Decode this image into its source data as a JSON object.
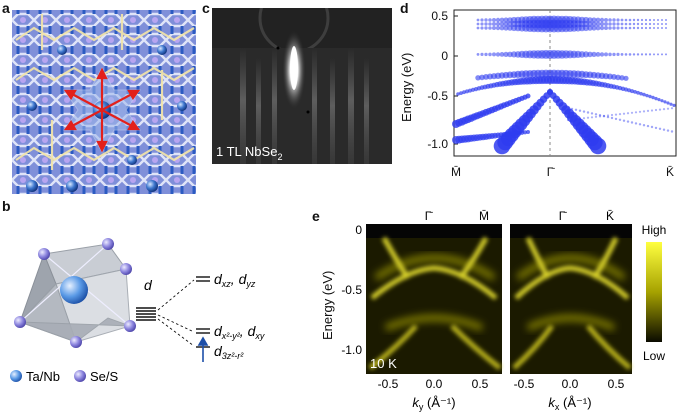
{
  "panel_labels": {
    "a": "a",
    "b": "b",
    "c": "c",
    "d": "d",
    "e": "e"
  },
  "panel_c": {
    "label": "1 TL NbSe",
    "label_sub": "2"
  },
  "panel_b": {
    "d_label": "d",
    "upper_orbital": "d",
    "upper_orbital_sub1": "xz",
    "upper_orbital_mid": ", d",
    "upper_orbital_sub2": "yz",
    "middle_orbital": "d",
    "middle_orbital_sub": "x²-y²",
    "middle_orbital_mid": ", d",
    "middle_orbital_sub2": "xy",
    "lower_orbital": "d",
    "lower_orbital_sub": "3z²-r²",
    "legend": [
      {
        "label": "Ta/Nb",
        "color": "#3a7fd5"
      },
      {
        "label": "Se/S",
        "color": "#8e86d8"
      }
    ]
  },
  "panel_d": {
    "ylabel": "Energy (eV)",
    "yticks": [
      "0.5",
      "0",
      "-0.5",
      "-1.0"
    ],
    "xticks": [
      "M̄",
      "Γ̄",
      "K̄"
    ],
    "marker_color": "#2f3cf0"
  },
  "panel_e": {
    "ylabel": "Energy (eV)",
    "yticks": [
      "0",
      "-0.5",
      "-1.0"
    ],
    "left": {
      "xticks": [
        "-0.5",
        "0.0",
        "0.5"
      ],
      "top_labels": [
        "Γ̄",
        "M̄"
      ],
      "xlabel": "k",
      "xlabel_sub": "y",
      "xlabel_unit": " (Å⁻¹)"
    },
    "right": {
      "xticks": [
        "-0.5",
        "0.0",
        "0.5"
      ],
      "top_labels": [
        "Γ̄",
        "K̄"
      ],
      "xlabel": "k",
      "xlabel_sub": "x",
      "xlabel_unit": " (Å⁻¹)"
    },
    "temperature": "10 K",
    "colorbar_high": "High",
    "colorbar_low": "Low"
  }
}
